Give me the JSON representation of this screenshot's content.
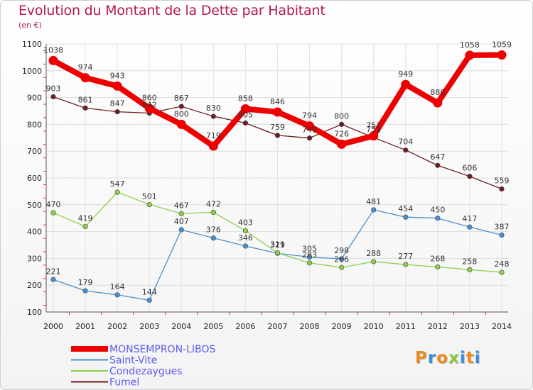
{
  "title": "Evolution du Montant de la Dette par Habitant",
  "subtitle": "(en €)",
  "logo": {
    "text": "Proxiti",
    "colors": [
      "#f08a1c",
      "#3a8ed8",
      "#f08a1c",
      "#8cc63f",
      "#3a8ed8",
      "#f08a1c",
      "#3a8ed8"
    ]
  },
  "chart_data": {
    "type": "line",
    "x": [
      2000,
      2001,
      2002,
      2003,
      2004,
      2005,
      2006,
      2007,
      2008,
      2009,
      2010,
      2011,
      2012,
      2013,
      2014
    ],
    "x_tick_labels": [
      "2000",
      "2001",
      "2002",
      "2003",
      "2004",
      "2005",
      "2006",
      "2007",
      "2008",
      "2009",
      "2010",
      "2011",
      "2012",
      "2013",
      "2014"
    ],
    "ylim": [
      100,
      1100
    ],
    "y_ticks": [
      100,
      200,
      300,
      400,
      500,
      600,
      700,
      800,
      900,
      1000,
      1100
    ],
    "y_tick_labels": [
      "100",
      "200",
      "300",
      "400",
      "500",
      "600",
      "700",
      "800",
      "900",
      "1000",
      "1100"
    ],
    "grid": true,
    "legend_position": "bottom-left",
    "series": [
      {
        "name": "MONSEMPRON-LIBOS",
        "color": "#ee0000",
        "emphasis": true,
        "values": [
          1038,
          974,
          943,
          860,
          800,
          719,
          858,
          846,
          794,
          726,
          757,
          949,
          880,
          1058,
          1059
        ],
        "labels": [
          "1038",
          "974",
          "943",
          "860",
          "800",
          "719",
          "858",
          "846",
          "794",
          "726",
          "757",
          "949",
          "880",
          "1058",
          "1059"
        ]
      },
      {
        "name": "Saint-Vite",
        "color": "#4a90d0",
        "emphasis": false,
        "values": [
          221,
          179,
          164,
          144,
          407,
          376,
          346,
          319,
          305,
          298,
          481,
          454,
          450,
          417,
          387
        ],
        "labels": [
          "221",
          "179",
          "164",
          "144",
          "407",
          "376",
          "346",
          "319",
          "305",
          "298",
          "481",
          "454",
          "450",
          "417",
          "387"
        ]
      },
      {
        "name": "Condezaygues",
        "color": "#8cd04c",
        "emphasis": false,
        "values": [
          470,
          419,
          547,
          501,
          467,
          472,
          403,
          321,
          283,
          266,
          288,
          277,
          268,
          258,
          248
        ],
        "labels": [
          "470",
          "419",
          "547",
          "501",
          "467",
          "472",
          "403",
          "321",
          "283",
          "266",
          "288",
          "277",
          "268",
          "258",
          "248"
        ]
      },
      {
        "name": "Fumel",
        "color": "#6e1e22",
        "emphasis": false,
        "values": [
          903,
          861,
          847,
          842,
          867,
          830,
          805,
          759,
          749,
          800,
          751,
          704,
          647,
          606,
          559
        ],
        "labels": [
          "903",
          "861",
          "847",
          "842",
          "867",
          "830",
          "805",
          "759",
          "749",
          "800",
          "751",
          "704",
          "647",
          "606",
          "559"
        ]
      }
    ]
  }
}
